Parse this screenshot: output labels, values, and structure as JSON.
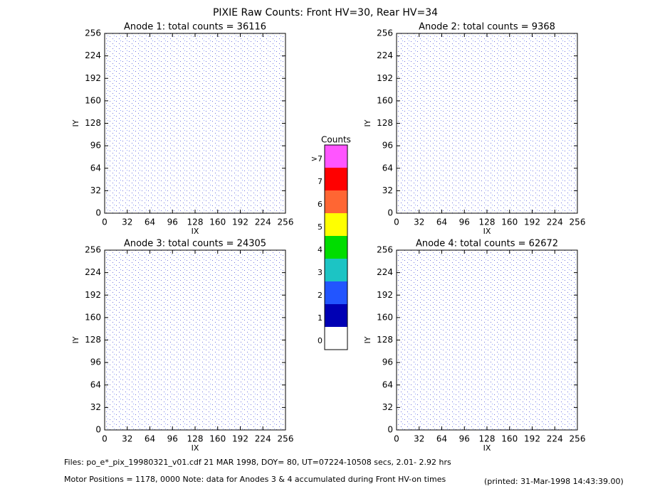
{
  "title": "PIXIE Raw Counts:  Front HV=30, Rear HV=34",
  "chart_data": [
    {
      "type": "heatmap",
      "title": "Anode 1: total counts = 36116",
      "x_label": "IX",
      "y_label": "IY",
      "xlim": [
        0,
        256
      ],
      "ylim": [
        0,
        256
      ],
      "xticks": [
        0,
        32,
        64,
        96,
        128,
        160,
        192,
        224,
        256
      ],
      "yticks": [
        0,
        32,
        64,
        96,
        128,
        160,
        192,
        224,
        256
      ]
    },
    {
      "type": "heatmap",
      "title": "Anode 2: total counts = 9368",
      "x_label": "IX",
      "y_label": "IY",
      "xlim": [
        0,
        256
      ],
      "ylim": [
        0,
        256
      ],
      "xticks": [
        0,
        32,
        64,
        96,
        128,
        160,
        192,
        224,
        256
      ],
      "yticks": [
        0,
        32,
        64,
        96,
        128,
        160,
        192,
        224,
        256
      ]
    },
    {
      "type": "heatmap",
      "title": "Anode 3: total counts = 24305",
      "x_label": "IX",
      "y_label": "IY",
      "xlim": [
        0,
        256
      ],
      "ylim": [
        0,
        256
      ],
      "xticks": [
        0,
        32,
        64,
        96,
        128,
        160,
        192,
        224,
        256
      ],
      "yticks": [
        0,
        32,
        64,
        96,
        128,
        160,
        192,
        224,
        256
      ]
    },
    {
      "type": "heatmap",
      "title": "Anode 4: total counts = 62672",
      "x_label": "IX",
      "y_label": "IY",
      "xlim": [
        0,
        256
      ],
      "ylim": [
        0,
        256
      ],
      "xticks": [
        0,
        32,
        64,
        96,
        128,
        160,
        192,
        224,
        256
      ],
      "yticks": [
        0,
        32,
        64,
        96,
        128,
        160,
        192,
        224,
        256
      ]
    }
  ],
  "colorbar": {
    "title": "Counts",
    "labels": [
      "0",
      "1",
      "2",
      "3",
      "4",
      "5",
      "6",
      "7",
      ">7"
    ],
    "colors": [
      "#ffffff",
      "#0000b4",
      "#2255ff",
      "#1cc4c4",
      "#00dd00",
      "#ffff00",
      "#ff6633",
      "#ff0000",
      "#ff55ff"
    ]
  },
  "footer": {
    "files": "Files: po_e*_pix_19980321_v01.cdf   21 MAR 1998, DOY= 80, UT=07224-10508 secs,  2.01- 2.92 hrs",
    "motor": "Motor Positions = 1178, 0000   Note: data for Anodes 3 & 4 accumulated during Front HV-on times",
    "printed": "(printed: 31-Mar-1998 14:43:39.00)"
  }
}
